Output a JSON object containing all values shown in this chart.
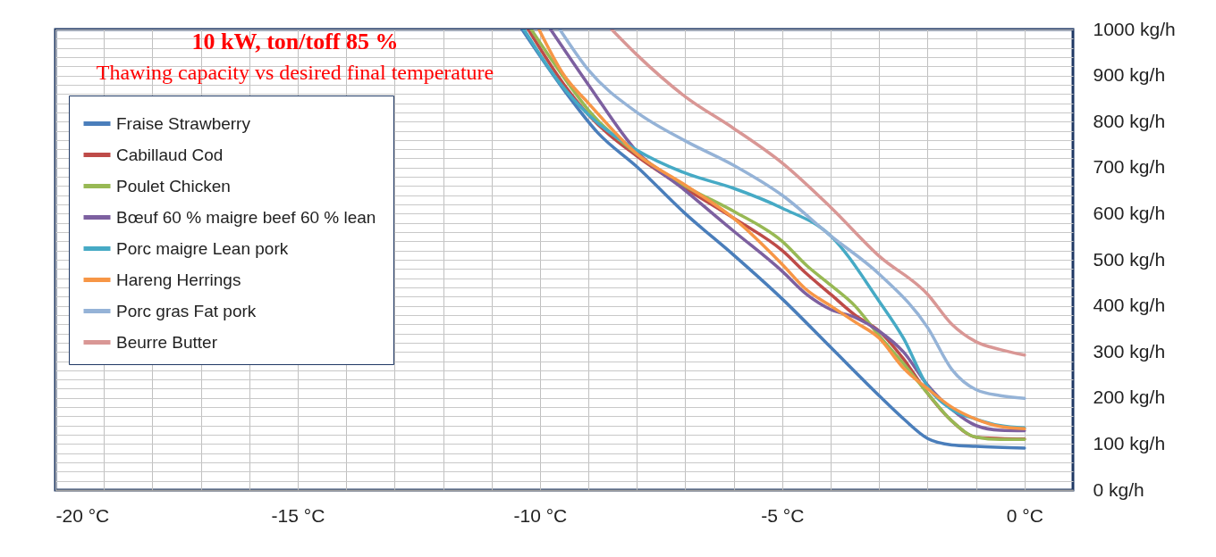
{
  "chart_data": {
    "type": "line",
    "title": "10 kW, ton/toff 85 %",
    "subtitle": "Thawing capacity vs desired final temperature",
    "xlim": [
      -20,
      1
    ],
    "xticks": [
      {
        "value": -20,
        "label": "-20 °C"
      },
      {
        "value": -19,
        "label": null
      },
      {
        "value": -18,
        "label": null
      },
      {
        "value": -17,
        "label": null
      },
      {
        "value": -16,
        "label": null
      },
      {
        "value": -15,
        "label": "-15 °C"
      },
      {
        "value": -14,
        "label": null
      },
      {
        "value": -13,
        "label": null
      },
      {
        "value": -12,
        "label": null
      },
      {
        "value": -11,
        "label": null
      },
      {
        "value": -10,
        "label": "-10 °C"
      },
      {
        "value": -9,
        "label": null
      },
      {
        "value": -8,
        "label": null
      },
      {
        "value": -7,
        "label": null
      },
      {
        "value": -6,
        "label": null
      },
      {
        "value": -5,
        "label": "-5 °C"
      },
      {
        "value": -4,
        "label": null
      },
      {
        "value": -3,
        "label": null
      },
      {
        "value": -2,
        "label": null
      },
      {
        "value": -1,
        "label": null
      },
      {
        "value": 0,
        "label": "0 °C"
      }
    ],
    "ylim": [
      0,
      1000
    ],
    "yticks": [
      {
        "value": 0,
        "label": "0 kg/h"
      },
      {
        "value": 20,
        "label": null
      },
      {
        "value": 40,
        "label": null
      },
      {
        "value": 60,
        "label": null
      },
      {
        "value": 80,
        "label": null
      },
      {
        "value": 100,
        "label": "100 kg/h"
      },
      {
        "value": 120,
        "label": null
      },
      {
        "value": 140,
        "label": null
      },
      {
        "value": 160,
        "label": null
      },
      {
        "value": 180,
        "label": null
      },
      {
        "value": 200,
        "label": "200 kg/h"
      },
      {
        "value": 220,
        "label": null
      },
      {
        "value": 240,
        "label": null
      },
      {
        "value": 260,
        "label": null
      },
      {
        "value": 280,
        "label": null
      },
      {
        "value": 300,
        "label": "300 kg/h"
      },
      {
        "value": 320,
        "label": null
      },
      {
        "value": 340,
        "label": null
      },
      {
        "value": 360,
        "label": null
      },
      {
        "value": 380,
        "label": null
      },
      {
        "value": 400,
        "label": "400 kg/h"
      },
      {
        "value": 420,
        "label": null
      },
      {
        "value": 440,
        "label": null
      },
      {
        "value": 460,
        "label": null
      },
      {
        "value": 480,
        "label": null
      },
      {
        "value": 500,
        "label": "500 kg/h"
      },
      {
        "value": 520,
        "label": null
      },
      {
        "value": 540,
        "label": null
      },
      {
        "value": 560,
        "label": null
      },
      {
        "value": 580,
        "label": null
      },
      {
        "value": 600,
        "label": "600 kg/h"
      },
      {
        "value": 620,
        "label": null
      },
      {
        "value": 640,
        "label": null
      },
      {
        "value": 660,
        "label": null
      },
      {
        "value": 680,
        "label": null
      },
      {
        "value": 700,
        "label": "700 kg/h"
      },
      {
        "value": 720,
        "label": null
      },
      {
        "value": 740,
        "label": null
      },
      {
        "value": 760,
        "label": null
      },
      {
        "value": 780,
        "label": null
      },
      {
        "value": 800,
        "label": "800 kg/h"
      },
      {
        "value": 820,
        "label": null
      },
      {
        "value": 840,
        "label": null
      },
      {
        "value": 860,
        "label": null
      },
      {
        "value": 880,
        "label": null
      },
      {
        "value": 900,
        "label": "900 kg/h"
      },
      {
        "value": 920,
        "label": null
      },
      {
        "value": 940,
        "label": null
      },
      {
        "value": 960,
        "label": null
      },
      {
        "value": 980,
        "label": null
      },
      {
        "value": 1000,
        "label": "1000 kg/h"
      }
    ],
    "grid": true,
    "legend": "top left",
    "series": [
      {
        "name": "Fraise Strawberry",
        "color": "#4a7ebb",
        "x": [
          -10.37,
          -9.5,
          -8.8,
          -8,
          -7,
          -6,
          -5,
          -4,
          -3,
          -2.5,
          -2,
          -1.5,
          -1,
          0
        ],
        "values": [
          1000,
          868,
          775,
          702,
          600,
          510,
          415,
          310,
          205,
          155,
          112,
          98,
          95,
          91
        ]
      },
      {
        "name": "Cabillaud Cod",
        "color": "#be4b48",
        "x": [
          -10.24,
          -9.5,
          -9,
          -8,
          -7,
          -6,
          -5,
          -4.5,
          -4,
          -3.5,
          -3,
          -2.5,
          -2,
          -1.5,
          -1,
          -0.5,
          0
        ],
        "values": [
          1000,
          880,
          815,
          725,
          655,
          590,
          520,
          470,
          425,
          380,
          345,
          285,
          210,
          150,
          115,
          112,
          111
        ]
      },
      {
        "name": "Poulet Chicken",
        "color": "#98b954",
        "x": [
          -10.18,
          -9.5,
          -9,
          -8,
          -7,
          -6,
          -5,
          -4.5,
          -4,
          -3.5,
          -3,
          -2.5,
          -2,
          -1.5,
          -1,
          -0.5,
          0
        ],
        "values": [
          1000,
          895,
          825,
          730,
          660,
          605,
          540,
          488,
          445,
          400,
          335,
          275,
          210,
          150,
          115,
          110,
          110
        ]
      },
      {
        "name": "Bœuf 60 % maigre  beef 60 % lean",
        "color": "#7d60a0",
        "x": [
          -9.78,
          -9,
          -8,
          -7,
          -6,
          -5,
          -4.5,
          -4,
          -3.5,
          -3,
          -2.5,
          -2,
          -1.5,
          -1,
          -0.5,
          0
        ],
        "values": [
          1000,
          880,
          735,
          650,
          562,
          475,
          425,
          392,
          375,
          345,
          300,
          228,
          175,
          140,
          130,
          129
        ]
      },
      {
        "name": "Porc maigre Lean pork",
        "color": "#46aac5",
        "x": [
          -10.33,
          -9.6,
          -9,
          -8,
          -7,
          -6,
          -5,
          -4,
          -3,
          -2.5,
          -2,
          -1.5,
          -1,
          -0.5,
          0
        ],
        "values": [
          1000,
          885,
          815,
          738,
          688,
          655,
          612,
          552,
          410,
          330,
          225,
          175,
          154,
          140,
          135
        ]
      },
      {
        "name": "Hareng Herrings",
        "color": "#f79646",
        "x": [
          -10.02,
          -9.5,
          -9,
          -8,
          -7,
          -6,
          -5,
          -4.5,
          -4,
          -3.5,
          -3,
          -2.5,
          -2,
          -1.5,
          -1,
          -0.5,
          0
        ],
        "values": [
          1000,
          900,
          840,
          730,
          662,
          590,
          490,
          435,
          400,
          365,
          330,
          265,
          220,
          180,
          154,
          138,
          133
        ]
      },
      {
        "name": "Porc gras Fat pork",
        "color": "#95b3d7",
        "x": [
          -9.59,
          -9,
          -8,
          -7,
          -6,
          -5,
          -4,
          -3,
          -2,
          -1.5,
          -1,
          -0.5,
          0
        ],
        "values": [
          1000,
          912,
          820,
          758,
          705,
          640,
          552,
          469,
          353,
          262,
          218,
          205,
          199
        ]
      },
      {
        "name": "Beurre Butter",
        "color": "#d99795",
        "x": [
          -8.52,
          -8,
          -7,
          -6,
          -5,
          -4,
          -3,
          -2,
          -1.5,
          -1,
          -0.5,
          0
        ],
        "values": [
          1000,
          945,
          854,
          785,
          710,
          614,
          508,
          425,
          360,
          322,
          305,
          293
        ]
      }
    ]
  }
}
